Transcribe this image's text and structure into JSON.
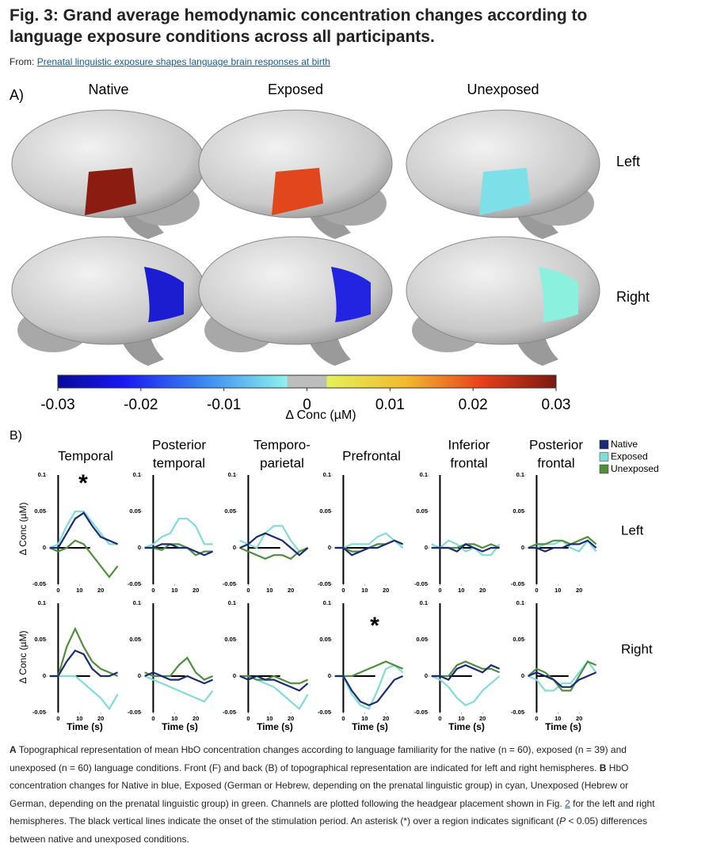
{
  "header": {
    "title": "Fig. 3: Grand average hemodynamic concentration changes according to language exposure conditions across all participants.",
    "from_label": "From:",
    "source": "Prenatal linguistic exposure shapes language brain responses at birth"
  },
  "panel_a": {
    "label": "A)",
    "columns": [
      "Native",
      "Exposed",
      "Unexposed"
    ],
    "rows": [
      "Left",
      "Right"
    ],
    "colorbar": {
      "label": "Δ Conc (µM)",
      "lim": [
        -0.03,
        0.03
      ],
      "ticks": [
        -0.03,
        -0.02,
        -0.01,
        0,
        0.01,
        0.02,
        0.03
      ]
    }
  },
  "panel_b": {
    "label": "B)",
    "ylabel": "Δ Conc (µM)",
    "xlabel": "Time (s)",
    "columns": [
      [
        "Temporal"
      ],
      [
        "Posterior",
        "temporal"
      ],
      [
        "Temporo-",
        "parietal"
      ],
      [
        "Prefrontal"
      ],
      [
        "Inferior",
        "frontal"
      ],
      [
        "Posterior",
        "frontal"
      ]
    ],
    "rows": [
      "Left",
      "Right"
    ],
    "series": [
      {
        "name": "Native",
        "color": "#1b2a78"
      },
      {
        "name": "Exposed",
        "color": "#7fdcd6"
      },
      {
        "name": "Unexposed",
        "color": "#4f8f3c"
      }
    ],
    "x": [
      -4,
      0,
      4,
      8,
      12,
      16,
      20,
      24,
      28
    ],
    "xlim": [
      -5,
      30
    ],
    "ylim": [
      -0.05,
      0.1
    ],
    "xticks": [
      0,
      10,
      20
    ],
    "yticks": [
      -0.05,
      0,
      0.05,
      0.1
    ],
    "charts": [
      [
        {
          "annotation": "*",
          "values": [
            [
              0,
              0,
              0.02,
              0.04,
              0.048,
              0.03,
              0.015,
              0.01,
              0.005
            ],
            [
              0,
              0.005,
              0.03,
              0.05,
              0.05,
              0.035,
              0.02,
              0.005,
              0.005
            ],
            [
              0,
              -0.005,
              0,
              0.01,
              0.005,
              -0.01,
              -0.025,
              -0.04,
              -0.025
            ]
          ]
        },
        {
          "values": [
            [
              0,
              0,
              0.005,
              0.005,
              0,
              0,
              -0.005,
              -0.01,
              -0.005
            ],
            [
              0,
              0.005,
              0.015,
              0.02,
              0.04,
              0.04,
              0.03,
              0.005,
              0.005
            ],
            [
              0,
              0,
              -0.003,
              0.005,
              0.005,
              0,
              -0.01,
              -0.005,
              -0.005
            ]
          ]
        },
        {
          "values": [
            [
              0,
              0.005,
              0.015,
              0.02,
              0.015,
              0.01,
              0,
              -0.01,
              0
            ],
            [
              0.01,
              0.005,
              0,
              0.02,
              0.03,
              0.03,
              0.01,
              -0.005,
              0
            ],
            [
              0,
              -0.005,
              -0.01,
              -0.015,
              -0.01,
              -0.01,
              -0.015,
              -0.005,
              0
            ]
          ]
        },
        {
          "values": [
            [
              0,
              0,
              -0.01,
              -0.005,
              0,
              0,
              0.005,
              0.01,
              0.005
            ],
            [
              0,
              0,
              0.005,
              0.005,
              0.005,
              0.015,
              0.02,
              0.01,
              0
            ],
            [
              0,
              0,
              -0.005,
              -0.005,
              0,
              0.005,
              0.005,
              0.01,
              0.005
            ]
          ]
        },
        {
          "values": [
            [
              0,
              0,
              0,
              -0.005,
              0.005,
              0,
              -0.005,
              0,
              0
            ],
            [
              0.005,
              0,
              0.01,
              0.005,
              -0.005,
              0,
              -0.01,
              -0.01,
              0.005
            ],
            [
              0,
              0,
              0,
              0,
              0.005,
              0.005,
              0,
              0.005,
              0
            ]
          ]
        },
        {
          "values": [
            [
              0,
              0,
              -0.005,
              0,
              0,
              0.005,
              0.005,
              0.01,
              0
            ],
            [
              0,
              0,
              0.005,
              0.005,
              0.01,
              0,
              -0.005,
              0.01,
              -0.005
            ],
            [
              0,
              0.005,
              0.005,
              0.01,
              0.01,
              0.005,
              0.01,
              0.015,
              0.005
            ]
          ]
        }
      ],
      [
        {
          "values": [
            [
              0,
              0,
              0.02,
              0.035,
              0.03,
              0.01,
              0,
              0,
              0.005
            ],
            [
              0,
              0,
              0,
              0,
              -0.01,
              -0.02,
              -0.03,
              -0.045,
              -0.025
            ],
            [
              0,
              0,
              0.04,
              0.065,
              0.04,
              0.02,
              0.01,
              0.005,
              0
            ]
          ]
        },
        {
          "values": [
            [
              0,
              0.005,
              0,
              -0.005,
              -0.005,
              0,
              -0.005,
              -0.01,
              -0.005
            ],
            [
              0,
              -0.005,
              -0.01,
              -0.015,
              -0.02,
              -0.025,
              -0.03,
              -0.035,
              -0.02
            ],
            [
              0.005,
              0,
              0,
              0,
              0.015,
              0.025,
              0.005,
              -0.005,
              0
            ]
          ]
        },
        {
          "values": [
            [
              0,
              -0.005,
              0,
              -0.005,
              -0.005,
              -0.01,
              -0.015,
              -0.02,
              -0.01
            ],
            [
              0,
              0,
              -0.005,
              -0.01,
              -0.015,
              -0.025,
              -0.035,
              -0.045,
              -0.025
            ],
            [
              0,
              0,
              -0.005,
              -0.005,
              0,
              -0.005,
              -0.01,
              -0.01,
              -0.005
            ]
          ]
        },
        {
          "annotation": "*",
          "values": [
            [
              0,
              0,
              -0.02,
              -0.035,
              -0.04,
              -0.035,
              -0.02,
              -0.005,
              0
            ],
            [
              0,
              0,
              -0.025,
              -0.04,
              -0.045,
              -0.02,
              0.01,
              0.015,
              0.005
            ],
            [
              0,
              0,
              0,
              0.005,
              0.01,
              0.015,
              0.02,
              0.015,
              0.01
            ]
          ]
        },
        {
          "values": [
            [
              0,
              0,
              -0.005,
              0.01,
              0.015,
              0.01,
              0.005,
              0.015,
              0.01
            ],
            [
              0,
              -0.005,
              -0.015,
              -0.03,
              -0.04,
              -0.035,
              -0.02,
              -0.01,
              0
            ],
            [
              0,
              0,
              0,
              0.015,
              0.02,
              0.015,
              0.01,
              0.01,
              0.005
            ]
          ]
        },
        {
          "values": [
            [
              0,
              0.005,
              0,
              -0.005,
              -0.015,
              -0.015,
              -0.005,
              0,
              0.005
            ],
            [
              0,
              -0.005,
              -0.02,
              -0.02,
              -0.01,
              -0.01,
              0.005,
              0.02,
              0.005
            ],
            [
              0,
              0.01,
              0.005,
              -0.005,
              -0.02,
              -0.02,
              0,
              0.02,
              0.015
            ]
          ]
        }
      ]
    ]
  },
  "caption": {
    "a_label": "A",
    "a_text": " Topographical representation of mean HbO concentration changes according to language familiarity for the native (n = 60), exposed (n = 39) and unexposed (n = 60) language conditions. Front (F) and back (B) of topographical representation are indicated for left and right hemispheres. ",
    "b_label": "B",
    "b_text_1": " HbO concentration changes for Native in blue, Exposed (German or Hebrew, depending on the prenatal linguistic group) in cyan, Unexposed (Hebrew or German, depending on the prenatal linguistic group) in green. Channels are plotted following the headgear placement shown in Fig. ",
    "fig_link": "2",
    "b_text_2": " for the left and right hemispheres. The black vertical lines indicate the onset of the stimulation period. An asterisk (*) over a region indicates significant (",
    "p": "P",
    "b_text_3": " < 0.05) differences between native and unexposed conditions."
  }
}
